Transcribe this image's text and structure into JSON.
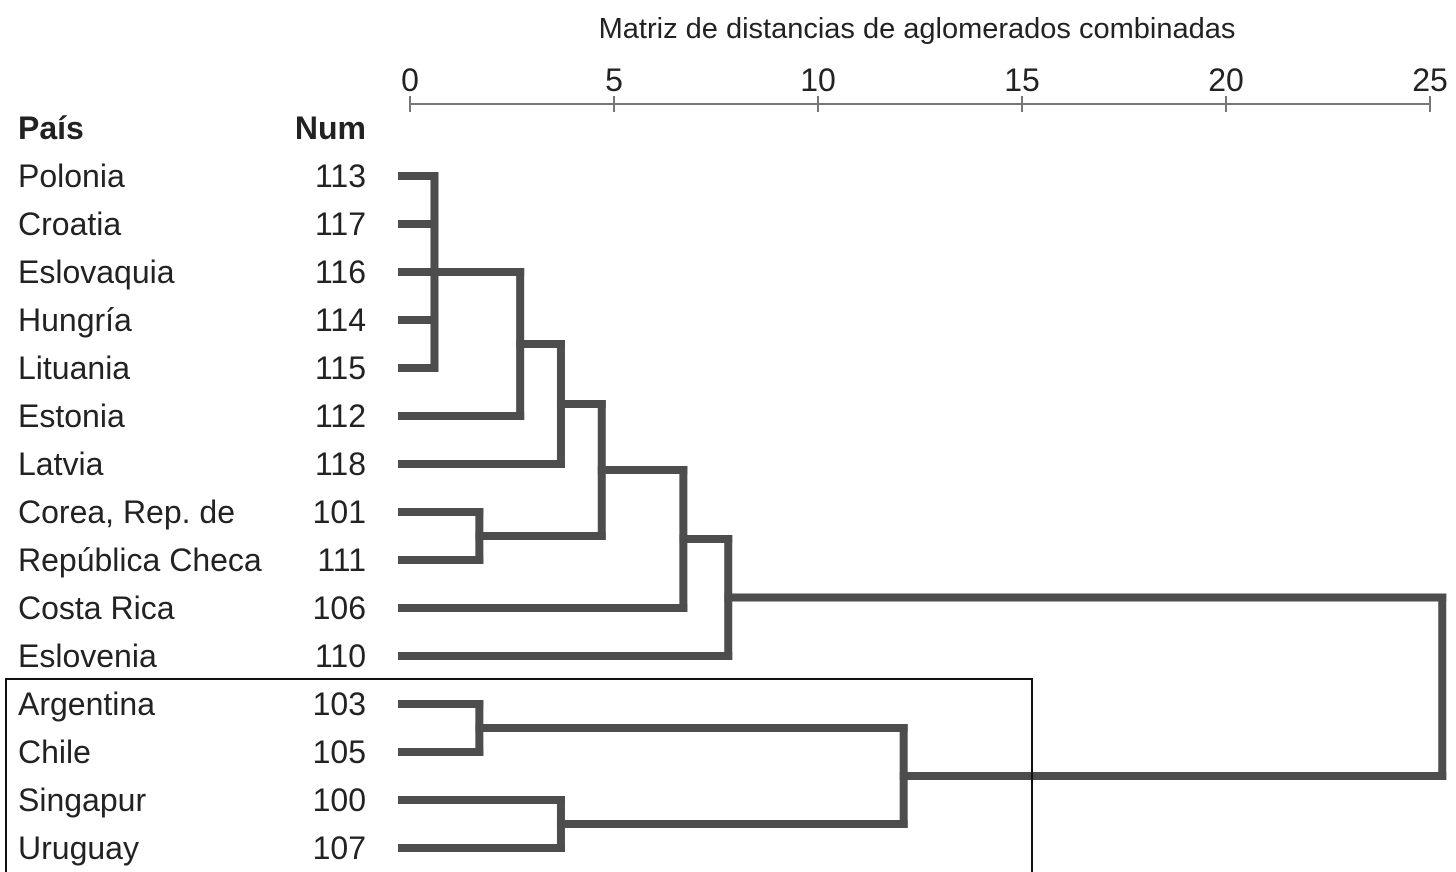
{
  "chart_data": {
    "type": "dendrogram",
    "title": "Matriz de distancias de aglomerados combinadas",
    "axis": {
      "ticks": [
        0,
        5,
        10,
        15,
        20,
        25
      ],
      "range": [
        0,
        25
      ]
    },
    "columns": {
      "country": "País",
      "num": "Num"
    },
    "leaves": [
      {
        "country": "Polonia",
        "num": "113"
      },
      {
        "country": "Croatia",
        "num": "117"
      },
      {
        "country": "Eslovaquia",
        "num": "116"
      },
      {
        "country": "Hungría",
        "num": "114"
      },
      {
        "country": "Lituania",
        "num": "115"
      },
      {
        "country": "Estonia",
        "num": "112"
      },
      {
        "country": "Latvia",
        "num": "118"
      },
      {
        "country": "Corea, Rep. de",
        "num": "101"
      },
      {
        "country": "República Checa",
        "num": "111"
      },
      {
        "country": "Costa Rica",
        "num": "106"
      },
      {
        "country": "Eslovenia",
        "num": "110"
      },
      {
        "country": "Argentina",
        "num": "103"
      },
      {
        "country": "Chile",
        "num": "105"
      },
      {
        "country": "Singapur",
        "num": "100"
      },
      {
        "country": "Uruguay",
        "num": "107"
      }
    ],
    "merges": [
      {
        "children": [
          "L0",
          "L1",
          "L2",
          "L3",
          "L4"
        ],
        "height": 0.6
      },
      {
        "children": [
          "L7",
          "L8"
        ],
        "height": 1.7
      },
      {
        "children": [
          "L11",
          "L12"
        ],
        "height": 1.7
      },
      {
        "children": [
          "M0",
          "L5"
        ],
        "height": 2.7
      },
      {
        "children": [
          "L13",
          "L14"
        ],
        "height": 3.7
      },
      {
        "children": [
          "M3",
          "L6"
        ],
        "height": 3.7
      },
      {
        "children": [
          "M5",
          "M1"
        ],
        "height": 4.7
      },
      {
        "children": [
          "M6",
          "L9"
        ],
        "height": 6.7
      },
      {
        "children": [
          "M7",
          "L10"
        ],
        "height": 7.8
      },
      {
        "children": [
          "M2",
          "M4"
        ],
        "height": 12.1
      },
      {
        "children": [
          "M8",
          "M9"
        ],
        "height": 25.3
      }
    ],
    "highlight_box": {
      "first_leaf": 11,
      "last_leaf": 14
    }
  }
}
